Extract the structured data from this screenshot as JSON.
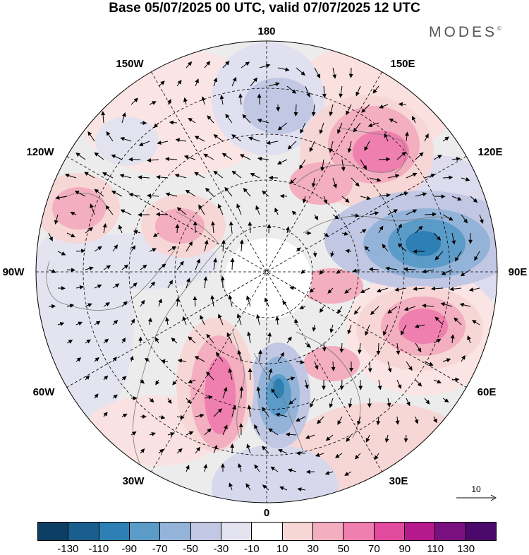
{
  "title": "Base 05/07/2025 00 UTC, valid 07/07/2025 12 UTC",
  "brand": "MODES",
  "brand_mark": "©",
  "longitude_labels": {
    "top": "180",
    "bottom": "0",
    "left": "90W",
    "right": "90E",
    "upper_left_1": "150W",
    "upper_left_2": "120W",
    "upper_right_1": "150E",
    "upper_right_2": "120E",
    "lower_left_1": "60W",
    "lower_left_2": "30W",
    "lower_right_1": "60E",
    "lower_right_2": "30E"
  },
  "reference_vector_label": "10",
  "colorbar": {
    "ticks": [
      "-130",
      "-110",
      "-90",
      "-70",
      "-50",
      "-30",
      "-10",
      "10",
      "30",
      "50",
      "70",
      "90",
      "110",
      "130"
    ],
    "colors": [
      "#0d3e63",
      "#1a5e8e",
      "#2e7fb3",
      "#5b9bc8",
      "#94b3d8",
      "#c2c8e3",
      "#e3e3f0",
      "#ffffff",
      "#f7d6d6",
      "#f3aebf",
      "#ef7fae",
      "#e14a9d",
      "#b5198b",
      "#7a0f80",
      "#4b0a6b"
    ]
  },
  "anomaly_centers": [
    {
      "sign": "negative",
      "level": "-90",
      "region": "northern Asia, near 100E"
    },
    {
      "sign": "negative",
      "level": "-70",
      "region": "northern Europe / Scandinavia"
    },
    {
      "sign": "negative",
      "level": "-50",
      "region": "North Pacific, near 170E"
    },
    {
      "sign": "positive",
      "level": "70",
      "region": "eastern Siberia, near 140E"
    },
    {
      "sign": "positive",
      "level": "70",
      "region": "central Asia, near 70E"
    },
    {
      "sign": "positive",
      "level": "70",
      "region": "North Atlantic, near 35W"
    },
    {
      "sign": "positive",
      "level": "50",
      "region": "western North America, near 120W"
    }
  ]
}
